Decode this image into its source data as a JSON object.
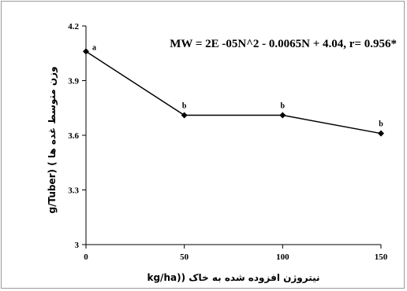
{
  "chart_data": {
    "type": "line",
    "x": [
      0,
      50,
      100,
      150
    ],
    "series": [
      {
        "values": [
          4.06,
          3.71,
          3.71,
          3.61
        ]
      }
    ],
    "point_labels": [
      "a",
      "b",
      "b",
      "b"
    ],
    "equation": "MW = 2E -05N^2 - 0.0065N + 4.04, r= 0.956*",
    "xlabel": "kg/ha)) نیتروژن افزوده شده به خاک",
    "ylabel": "g/Tuber) ( وزن متوسط غده ها",
    "xticks": [
      "0",
      "50",
      "100",
      "150"
    ],
    "yticks": [
      "3",
      "3.3",
      "3.6",
      "3.9",
      "4.2"
    ],
    "ylim": [
      3,
      4.2
    ],
    "xlim": [
      0,
      150
    ],
    "grid": false,
    "line_color": "#000000",
    "marker": "diamond"
  }
}
